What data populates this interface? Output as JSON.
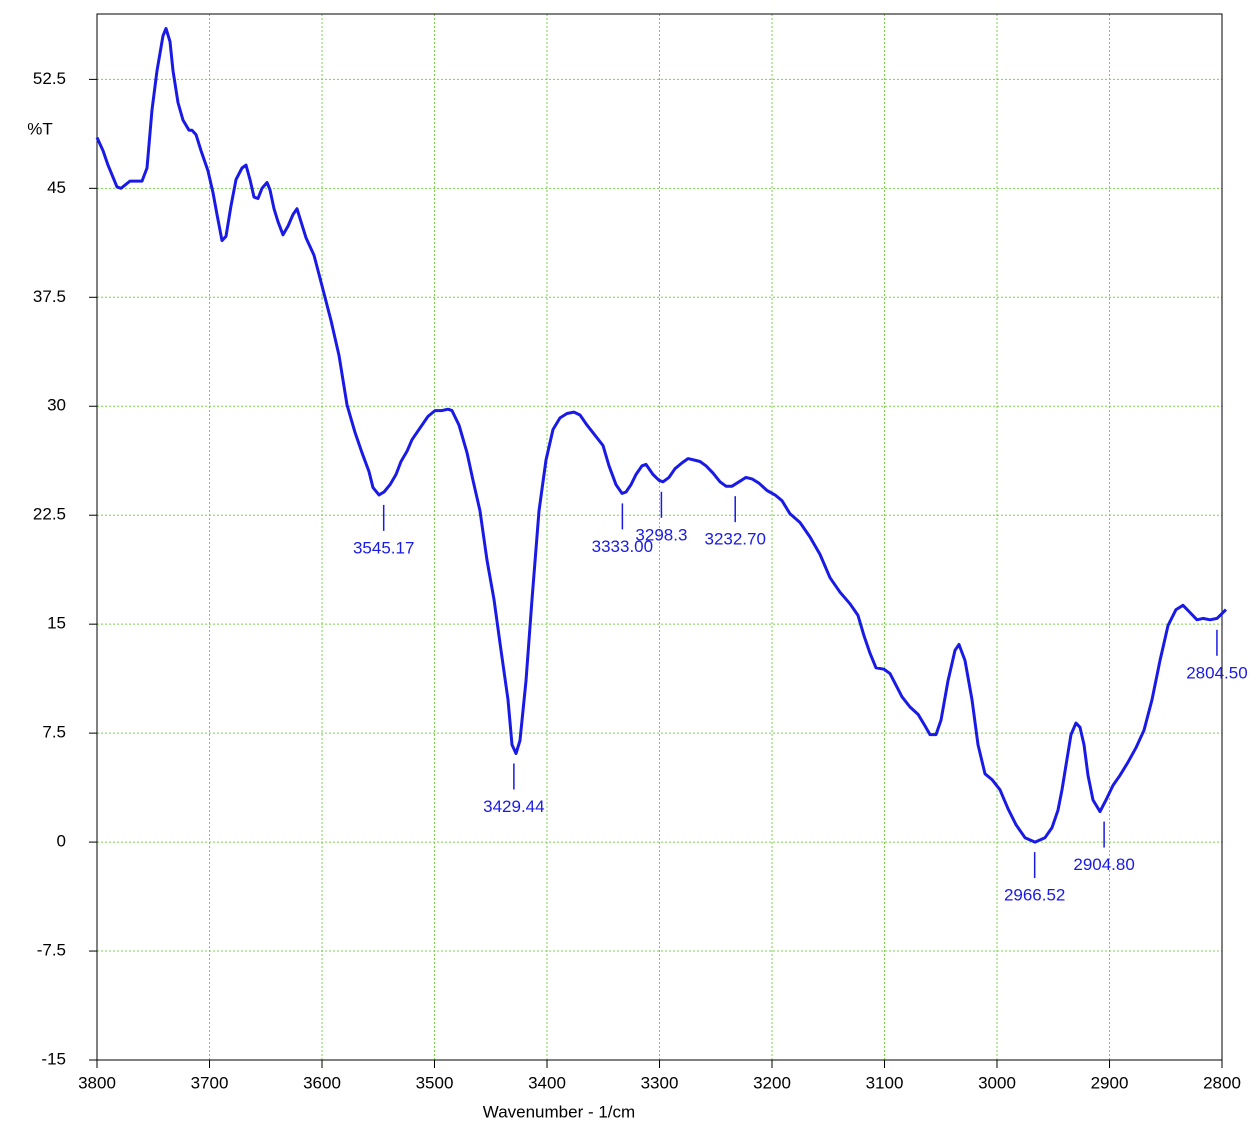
{
  "chart_data": {
    "type": "line",
    "x_label": "Wavenumber - 1/cm",
    "y_label": "%T",
    "color": "#1a1ae6",
    "grid": true,
    "xlim": [
      3800,
      2800
    ],
    "ylim": [
      -15,
      57
    ],
    "xticks": [
      3800,
      3700,
      3600,
      3500,
      3400,
      3300,
      3200,
      3100,
      3000,
      2900,
      2800
    ],
    "yticks": [
      -15,
      -7.5,
      0,
      7.5,
      15,
      22.5,
      30,
      37.5,
      45,
      52.5
    ],
    "x": [
      3800,
      3794.7,
      3790.2,
      3782.2,
      3778.7,
      3770.7,
      3760,
      3755.6,
      3751.1,
      3746.7,
      3741.3,
      3738.7,
      3735.1,
      3732.4,
      3728,
      3723.6,
      3718.2,
      3715.6,
      3712,
      3707.6,
      3701.3,
      3696.9,
      3693.3,
      3688.9,
      3685.3,
      3680.9,
      3676.4,
      3671.1,
      3667.6,
      3664,
      3660.4,
      3656.9,
      3653.3,
      3648.9,
      3646.2,
      3642.7,
      3639.1,
      3634.7,
      3630.2,
      3625.8,
      3622.2,
      3618.7,
      3614.2,
      3607.1,
      3600,
      3592,
      3584.9,
      3577.8,
      3570.7,
      3564.4,
      3558.2,
      3554.7,
      3549.3,
      3544.9,
      3539.6,
      3534.2,
      3529.8,
      3524.4,
      3520,
      3512.9,
      3505.8,
      3499.6,
      3493.3,
      3488,
      3484.4,
      3478.2,
      3471.1,
      3465.8,
      3459.6,
      3453.3,
      3447.1,
      3440.9,
      3434.7,
      3431.1,
      3427.6,
      3424,
      3418.7,
      3413.3,
      3407.1,
      3400.9,
      3394.7,
      3388.4,
      3382.2,
      3376,
      3370.7,
      3364.4,
      3350.2,
      3344.9,
      3338.7,
      3333.3,
      3329.8,
      3325.3,
      3320.9,
      3315.6,
      3312,
      3305.8,
      3300.4,
      3296.9,
      3291.6,
      3286.2,
      3280,
      3274.7,
      3269.3,
      3264,
      3258.7,
      3252.4,
      3246.2,
      3240.9,
      3235.6,
      3229.3,
      3223.1,
      3217.8,
      3211.6,
      3204.4,
      3197.3,
      3191.1,
      3184,
      3175.1,
      3166.2,
      3157.3,
      3148.4,
      3139.6,
      3130.7,
      3123.6,
      3118.2,
      3112.9,
      3107.6,
      3100.4,
      3095.1,
      3089.8,
      3084.4,
      3077.3,
      3070.2,
      3064,
      3059.6,
      3054.2,
      3049.8,
      3043.6,
      3037.3,
      3033.8,
      3028.4,
      3022.2,
      3016.9,
      3010.7,
      3004.4,
      2997.3,
      2990.2,
      2983.1,
      2975.1,
      2966.2,
      2957.3,
      2951.1,
      2945.8,
      2942.2,
      2938.7,
      2934.2,
      2929.8,
      2926.2,
      2922.7,
      2919.1,
      2914.7,
      2908.4,
      2903.1,
      2896.9,
      2890.7,
      2883.6,
      2876.4,
      2869.3,
      2862.2,
      2855.1,
      2848,
      2840.9,
      2834.7,
      2828.4,
      2822.2,
      2816.9,
      2810.7,
      2804.4,
      2796.4
    ],
    "values": [
      48.5,
      47.6,
      46.6,
      45.1,
      45.0,
      45.5,
      45.5,
      46.4,
      50.4,
      53.1,
      55.5,
      56.0,
      55.1,
      53.1,
      50.9,
      49.7,
      49.0,
      49.0,
      48.7,
      47.6,
      46.2,
      44.7,
      43.2,
      41.4,
      41.7,
      43.8,
      45.6,
      46.4,
      46.6,
      45.6,
      44.4,
      44.3,
      45.0,
      45.4,
      44.9,
      43.6,
      42.7,
      41.8,
      42.4,
      43.2,
      43.6,
      42.7,
      41.6,
      40.4,
      38.3,
      35.9,
      33.5,
      30.1,
      28.2,
      26.8,
      25.5,
      24.4,
      23.9,
      24.1,
      24.6,
      25.3,
      26.2,
      26.9,
      27.7,
      28.5,
      29.3,
      29.7,
      29.7,
      29.8,
      29.7,
      28.7,
      26.8,
      24.9,
      22.8,
      19.4,
      16.7,
      13.2,
      9.8,
      6.7,
      6.1,
      7.0,
      11.1,
      16.7,
      22.8,
      26.3,
      28.4,
      29.2,
      29.5,
      29.6,
      29.4,
      28.7,
      27.3,
      25.9,
      24.6,
      24.0,
      24.1,
      24.6,
      25.3,
      25.9,
      26.0,
      25.3,
      24.9,
      24.8,
      25.1,
      25.7,
      26.1,
      26.4,
      26.3,
      26.2,
      25.9,
      25.4,
      24.8,
      24.5,
      24.5,
      24.8,
      25.1,
      25.0,
      24.7,
      24.2,
      23.9,
      23.5,
      22.6,
      22.0,
      21.0,
      19.8,
      18.2,
      17.2,
      16.4,
      15.6,
      14.2,
      13.0,
      12.0,
      11.9,
      11.6,
      10.8,
      10.0,
      9.3,
      8.8,
      8.0,
      7.4,
      7.4,
      8.4,
      11.1,
      13.2,
      13.6,
      12.5,
      9.8,
      6.7,
      4.7,
      4.3,
      3.6,
      2.3,
      1.2,
      0.3,
      0.0,
      0.3,
      1.0,
      2.2,
      3.6,
      5.3,
      7.4,
      8.2,
      7.9,
      6.7,
      4.6,
      2.9,
      2.1,
      2.9,
      3.9,
      4.6,
      5.5,
      6.5,
      7.7,
      9.8,
      12.5,
      14.9,
      16.0,
      16.3,
      15.8,
      15.3,
      15.4,
      15.3,
      15.4,
      16.0
    ],
    "annotations": [
      {
        "x": 3545.17,
        "y": 23.9,
        "label": "3545.17"
      },
      {
        "x": 3429.44,
        "y": 6.1,
        "label": "3429.44"
      },
      {
        "x": 3333.0,
        "y": 24.0,
        "label": "3333.00"
      },
      {
        "x": 3298.3,
        "y": 24.8,
        "label": "3298.3"
      },
      {
        "x": 3232.7,
        "y": 24.5,
        "label": "3232.70"
      },
      {
        "x": 2966.52,
        "y": 0.0,
        "label": "2966.52"
      },
      {
        "x": 2904.8,
        "y": 2.1,
        "label": "2904.80"
      },
      {
        "x": 2804.5,
        "y": 15.3,
        "label": "2804.50"
      }
    ]
  }
}
